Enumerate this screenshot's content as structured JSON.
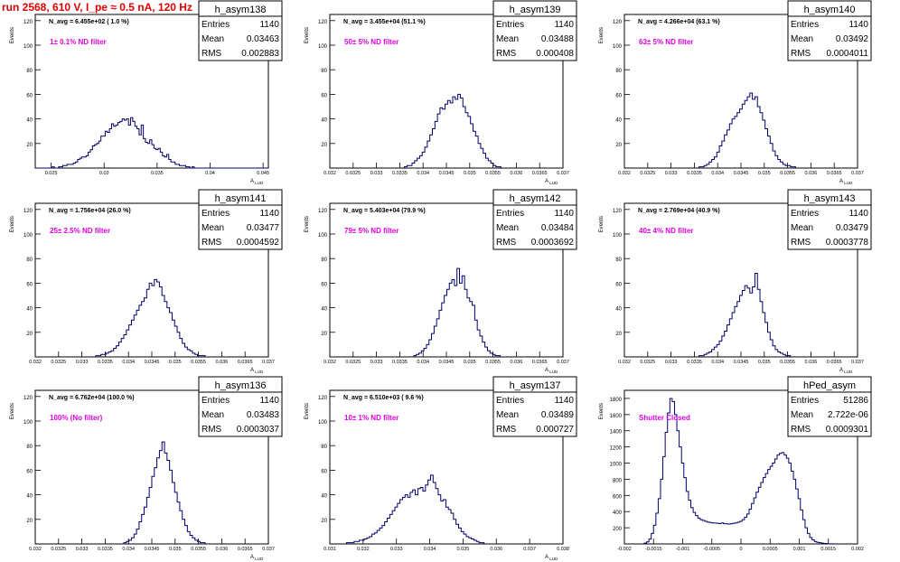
{
  "header": {
    "run_title": "run 2568,   610 V, I_pe ≈ 0.5 nA, 120 Hz"
  },
  "colors": {
    "histogram_line": "#00006b",
    "label_magenta": "#e000e0",
    "title_red": "#e00000",
    "frame": "#000000"
  },
  "chart_data": [
    {
      "type": "histogram",
      "name": "h_asym138",
      "entries": "1140",
      "mean": "0.03463",
      "rms": "0.002883",
      "navg_label": "N_avg = 6.455e+02 ( 1.0 %)",
      "filter_label": "1± 0.1% ND filter",
      "ylabel": "Events",
      "xlabel": "A_LUD",
      "xlim": [
        0.0235,
        0.0455
      ],
      "ylim": [
        0,
        125
      ],
      "xticks": [
        "0.025",
        "0.03",
        "0.035",
        "0.04",
        "0.045"
      ],
      "xtick_values": [
        0.025,
        0.03,
        0.035,
        0.04,
        0.045
      ],
      "yticks": [
        "20",
        "40",
        "60",
        "80",
        "100",
        "120"
      ],
      "ytick_values": [
        20,
        40,
        60,
        80,
        100,
        120
      ],
      "bin_edges_start": 0.0235,
      "bin_width": 0.0002,
      "values": [
        0,
        0,
        0,
        0,
        0,
        0,
        0,
        0,
        1,
        0,
        0,
        1,
        1,
        2,
        2,
        3,
        3,
        3,
        4,
        5,
        7,
        8,
        9,
        9,
        10,
        13,
        15,
        18,
        19,
        20,
        22,
        26,
        26,
        30,
        29,
        32,
        36,
        34,
        35,
        37,
        38,
        40,
        39,
        40,
        35,
        41,
        38,
        34,
        32,
        27,
        35,
        24,
        21,
        20,
        23,
        19,
        16,
        15,
        16,
        13,
        10,
        9,
        11,
        7,
        5,
        5,
        3,
        3,
        2,
        2,
        2,
        1,
        1,
        0,
        1,
        0,
        0,
        0,
        0,
        0,
        0,
        0,
        0,
        0,
        0,
        0,
        0,
        0,
        0,
        0,
        0,
        0,
        0,
        0,
        0,
        0,
        0,
        0,
        0,
        0,
        0,
        0,
        0,
        0,
        0,
        0,
        0,
        0,
        0,
        0
      ]
    },
    {
      "type": "histogram",
      "name": "h_asym139",
      "entries": "1140",
      "mean": "0.03488",
      "rms": "0.000408",
      "navg_label": "N_avg = 3.455e+04 (51.1 %)",
      "filter_label": "50± 5% ND filter",
      "ylabel": "Events",
      "xlabel": "A_LUD",
      "xlim": [
        0.032,
        0.037
      ],
      "ylim": [
        0,
        125
      ],
      "xticks": [
        "0.032",
        "0.0325",
        "0.033",
        "0.0335",
        "0.034",
        "0.0345",
        "0.035",
        "0.0355",
        "0.036",
        "0.0365",
        "0.037"
      ],
      "xtick_values": [
        0.032,
        0.0325,
        0.033,
        0.0335,
        0.034,
        0.0345,
        0.035,
        0.0355,
        0.036,
        0.0365,
        0.037
      ],
      "yticks": [
        "20",
        "40",
        "60",
        "80",
        "100",
        "120"
      ],
      "ytick_values": [
        20,
        40,
        60,
        80,
        100,
        120
      ],
      "bin_edges_start": 0.0336,
      "bin_width": 5.45e-05,
      "values": [
        1,
        2,
        2,
        4,
        6,
        8,
        10,
        13,
        17,
        22,
        27,
        32,
        38,
        44,
        49,
        48,
        52,
        55,
        53,
        58,
        56,
        60,
        57,
        50,
        45,
        42,
        36,
        30,
        26,
        20,
        16,
        12,
        8,
        6,
        4,
        2,
        1,
        1
      ]
    },
    {
      "type": "histogram",
      "name": "h_asym140",
      "entries": "1140",
      "mean": "0.03492",
      "rms": "0.0004011",
      "navg_label": "N_avg = 4.266e+04 (63.1 %)",
      "filter_label": "63± 5% ND filter",
      "ylabel": "Events",
      "xlabel": "A_LUD",
      "xlim": [
        0.032,
        0.037
      ],
      "ylim": [
        0,
        125
      ],
      "xticks": [
        "0.032",
        "0.0325",
        "0.033",
        "0.0335",
        "0.034",
        "0.0345",
        "0.035",
        "0.0355",
        "0.036",
        "0.0365",
        "0.037"
      ],
      "xtick_values": [
        0.032,
        0.0325,
        0.033,
        0.0335,
        0.034,
        0.0345,
        0.035,
        0.0355,
        0.036,
        0.0365,
        0.037
      ],
      "yticks": [
        "20",
        "40",
        "60",
        "80",
        "100",
        "120"
      ],
      "ytick_values": [
        20,
        40,
        60,
        80,
        100,
        120
      ],
      "bin_edges_start": 0.0336,
      "bin_width": 5.45e-05,
      "values": [
        1,
        1,
        2,
        3,
        5,
        7,
        9,
        13,
        18,
        22,
        27,
        31,
        36,
        40,
        42,
        45,
        48,
        52,
        55,
        58,
        61,
        56,
        58,
        50,
        45,
        39,
        32,
        26,
        20,
        14,
        10,
        7,
        5,
        3,
        2,
        2,
        1,
        1
      ]
    },
    {
      "type": "histogram",
      "name": "h_asym141",
      "entries": "1140",
      "mean": "0.03477",
      "rms": "0.0004592",
      "navg_label": "N_avg = 1.756e+04 (26.0 %)",
      "filter_label": "25± 2.5% ND filter",
      "ylabel": "Events",
      "xlabel": "A_LUD",
      "xlim": [
        0.032,
        0.037
      ],
      "ylim": [
        0,
        125
      ],
      "xticks": [
        "0.032",
        "0.0325",
        "0.033",
        "0.0335",
        "0.034",
        "0.0345",
        "0.035",
        "0.0355",
        "0.036",
        "0.0365",
        "0.037"
      ],
      "xtick_values": [
        0.032,
        0.0325,
        0.033,
        0.0335,
        0.034,
        0.0345,
        0.035,
        0.0355,
        0.036,
        0.0365,
        0.037
      ],
      "yticks": [
        "20",
        "40",
        "60",
        "80",
        "100",
        "120"
      ],
      "ytick_values": [
        20,
        40,
        60,
        80,
        100,
        120
      ],
      "bin_edges_start": 0.0333,
      "bin_width": 5.45e-05,
      "values": [
        1,
        1,
        2,
        2,
        3,
        4,
        5,
        7,
        9,
        12,
        15,
        18,
        22,
        26,
        30,
        34,
        38,
        42,
        45,
        48,
        55,
        60,
        58,
        63,
        61,
        57,
        50,
        45,
        40,
        36,
        30,
        25,
        20,
        15,
        11,
        8,
        6,
        5,
        3,
        2,
        1,
        1,
        1
      ]
    },
    {
      "type": "histogram",
      "name": "h_asym142",
      "entries": "1140",
      "mean": "0.03484",
      "rms": "0.0003692",
      "navg_label": "N_avg = 5.403e+04 (79.9 %)",
      "filter_label": "79± 5% ND filter",
      "ylabel": "Events",
      "xlabel": "A_LUD",
      "xlim": [
        0.032,
        0.037
      ],
      "ylim": [
        0,
        125
      ],
      "xticks": [
        "0.032",
        "0.0325",
        "0.033",
        "0.0335",
        "0.034",
        "0.0345",
        "0.035",
        "0.0355",
        "0.036",
        "0.0365",
        "0.037"
      ],
      "xtick_values": [
        0.032,
        0.0325,
        0.033,
        0.0335,
        0.034,
        0.0345,
        0.035,
        0.0355,
        0.036,
        0.0365,
        0.037
      ],
      "yticks": [
        "20",
        "40",
        "60",
        "80",
        "100",
        "120"
      ],
      "ytick_values": [
        20,
        40,
        60,
        80,
        100,
        120
      ],
      "bin_edges_start": 0.0338,
      "bin_width": 5.45e-05,
      "values": [
        1,
        2,
        3,
        5,
        7,
        10,
        14,
        19,
        25,
        31,
        38,
        44,
        50,
        55,
        60,
        63,
        58,
        72,
        60,
        66,
        55,
        48,
        45,
        42,
        30,
        22,
        17,
        12,
        8,
        5,
        3,
        2,
        1,
        1
      ]
    },
    {
      "type": "histogram",
      "name": "h_asym143",
      "entries": "1140",
      "mean": "0.03479",
      "rms": "0.0003778",
      "navg_label": "N_avg = 2.769e+04 (40.9 %)",
      "filter_label": "40± 4% ND filter",
      "ylabel": "Events",
      "xlabel": "A_LUD",
      "xlim": [
        0.032,
        0.037
      ],
      "ylim": [
        0,
        125
      ],
      "xticks": [
        "0.032",
        "0.0325",
        "0.033",
        "0.0335",
        "0.034",
        "0.0345",
        "0.035",
        "0.0355",
        "0.036",
        "0.0365",
        "0.037"
      ],
      "xtick_values": [
        0.032,
        0.0325,
        0.033,
        0.0335,
        0.034,
        0.0345,
        0.035,
        0.0355,
        0.036,
        0.0365,
        0.037
      ],
      "yticks": [
        "20",
        "40",
        "60",
        "80",
        "100",
        "120"
      ],
      "ytick_values": [
        20,
        40,
        60,
        80,
        100,
        120
      ],
      "bin_edges_start": 0.0336,
      "bin_width": 5.45e-05,
      "values": [
        1,
        1,
        2,
        3,
        4,
        6,
        8,
        10,
        13,
        17,
        21,
        26,
        31,
        36,
        41,
        45,
        50,
        54,
        58,
        56,
        52,
        57,
        68,
        55,
        45,
        36,
        28,
        20,
        14,
        9,
        6,
        4,
        3,
        2,
        1,
        1
      ]
    },
    {
      "type": "histogram",
      "name": "h_asym136",
      "entries": "1140",
      "mean": "0.03483",
      "rms": "0.0003037",
      "navg_label": "N_avg = 6.762e+04 (100.0 %)",
      "filter_label": "100% (No filter)",
      "ylabel": "Events",
      "xlabel": "A_LUD",
      "xlim": [
        0.032,
        0.037
      ],
      "ylim": [
        0,
        125
      ],
      "xticks": [
        "0.032",
        "0.0325",
        "0.033",
        "0.0335",
        "0.034",
        "0.0345",
        "0.035",
        "0.0355",
        "0.036",
        "0.0365",
        "0.037"
      ],
      "xtick_values": [
        0.032,
        0.0325,
        0.033,
        0.0335,
        0.034,
        0.0345,
        0.035,
        0.0355,
        0.036,
        0.0365,
        0.037
      ],
      "yticks": [
        "20",
        "40",
        "60",
        "80",
        "100",
        "120"
      ],
      "ytick_values": [
        20,
        40,
        60,
        80,
        100,
        120
      ],
      "bin_edges_start": 0.0339,
      "bin_width": 5.45e-05,
      "values": [
        1,
        2,
        3,
        5,
        8,
        12,
        18,
        24,
        30,
        38,
        46,
        55,
        62,
        70,
        76,
        83,
        74,
        68,
        60,
        50,
        42,
        34,
        27,
        20,
        15,
        10,
        7,
        5,
        3,
        2,
        1,
        1
      ]
    },
    {
      "type": "histogram",
      "name": "h_asym137",
      "entries": "1140",
      "mean": "0.03489",
      "rms": "0.000727",
      "navg_label": "N_avg = 6.510e+03 ( 9.6 %)",
      "filter_label": "10± 1% ND filter",
      "ylabel": "Events",
      "xlabel": "A_LUD",
      "xlim": [
        0.031,
        0.038
      ],
      "ylim": [
        0,
        125
      ],
      "xticks": [
        "0.031",
        "0.032",
        "0.033",
        "0.034",
        "0.035",
        "0.036",
        "0.037",
        "0.038"
      ],
      "xtick_values": [
        0.031,
        0.032,
        0.033,
        0.034,
        0.035,
        0.036,
        0.037,
        0.038
      ],
      "yticks": [
        "20",
        "40",
        "60",
        "80",
        "100",
        "120"
      ],
      "ytick_values": [
        20,
        40,
        60,
        80,
        100,
        120
      ],
      "bin_edges_start": 0.0315,
      "bin_width": 7.65e-05,
      "values": [
        1,
        1,
        1,
        2,
        2,
        3,
        3,
        4,
        5,
        6,
        8,
        9,
        11,
        13,
        15,
        18,
        21,
        24,
        27,
        30,
        33,
        36,
        38,
        40,
        38,
        42,
        44,
        40,
        45,
        46,
        43,
        48,
        52,
        56,
        50,
        45,
        40,
        35,
        36,
        30,
        28,
        25,
        20,
        16,
        13,
        10,
        8,
        6,
        5,
        4,
        3,
        2,
        1,
        1
      ]
    },
    {
      "type": "histogram",
      "name": "hPed_asym",
      "entries": "51286",
      "mean": "2.722e-06",
      "rms": "0.0009301",
      "navg_label": "",
      "filter_label": "Shutter Closed",
      "ylabel": "Events",
      "xlabel": "",
      "xlim": [
        -0.002,
        0.002
      ],
      "ylim": [
        0,
        1900
      ],
      "xticks": [
        "-0.002",
        "-0.0015",
        "-0.001",
        "-0.0005",
        "0",
        "0.0005",
        "0.001",
        "0.0015",
        "0.002"
      ],
      "xtick_values": [
        -0.002,
        -0.0015,
        -0.001,
        -0.0005,
        0,
        0.0005,
        0.001,
        0.0015,
        0.002
      ],
      "yticks": [
        "200",
        "400",
        "600",
        "800",
        "1000",
        "1200",
        "1400",
        "1600",
        "1800"
      ],
      "ytick_values": [
        200,
        400,
        600,
        800,
        1000,
        1200,
        1400,
        1600,
        1800
      ],
      "bin_edges_start": -0.00166,
      "bin_width": 4e-05,
      "values": [
        10,
        25,
        60,
        130,
        230,
        380,
        560,
        800,
        1080,
        1380,
        1620,
        1800,
        1760,
        1600,
        1400,
        1200,
        1000,
        820,
        650,
        540,
        450,
        390,
        350,
        320,
        300,
        290,
        280,
        270,
        265,
        260,
        258,
        255,
        252,
        260,
        250,
        248,
        246,
        250,
        255,
        260,
        270,
        280,
        300,
        330,
        370,
        430,
        500,
        570,
        640,
        700,
        760,
        820,
        870,
        920,
        960,
        1000,
        1050,
        1100,
        1120,
        1130,
        1100,
        1060,
        1000,
        900,
        800,
        680,
        560,
        420,
        300,
        200,
        130,
        80,
        50,
        30,
        20,
        15,
        10,
        6,
        4,
        2,
        1
      ]
    }
  ]
}
